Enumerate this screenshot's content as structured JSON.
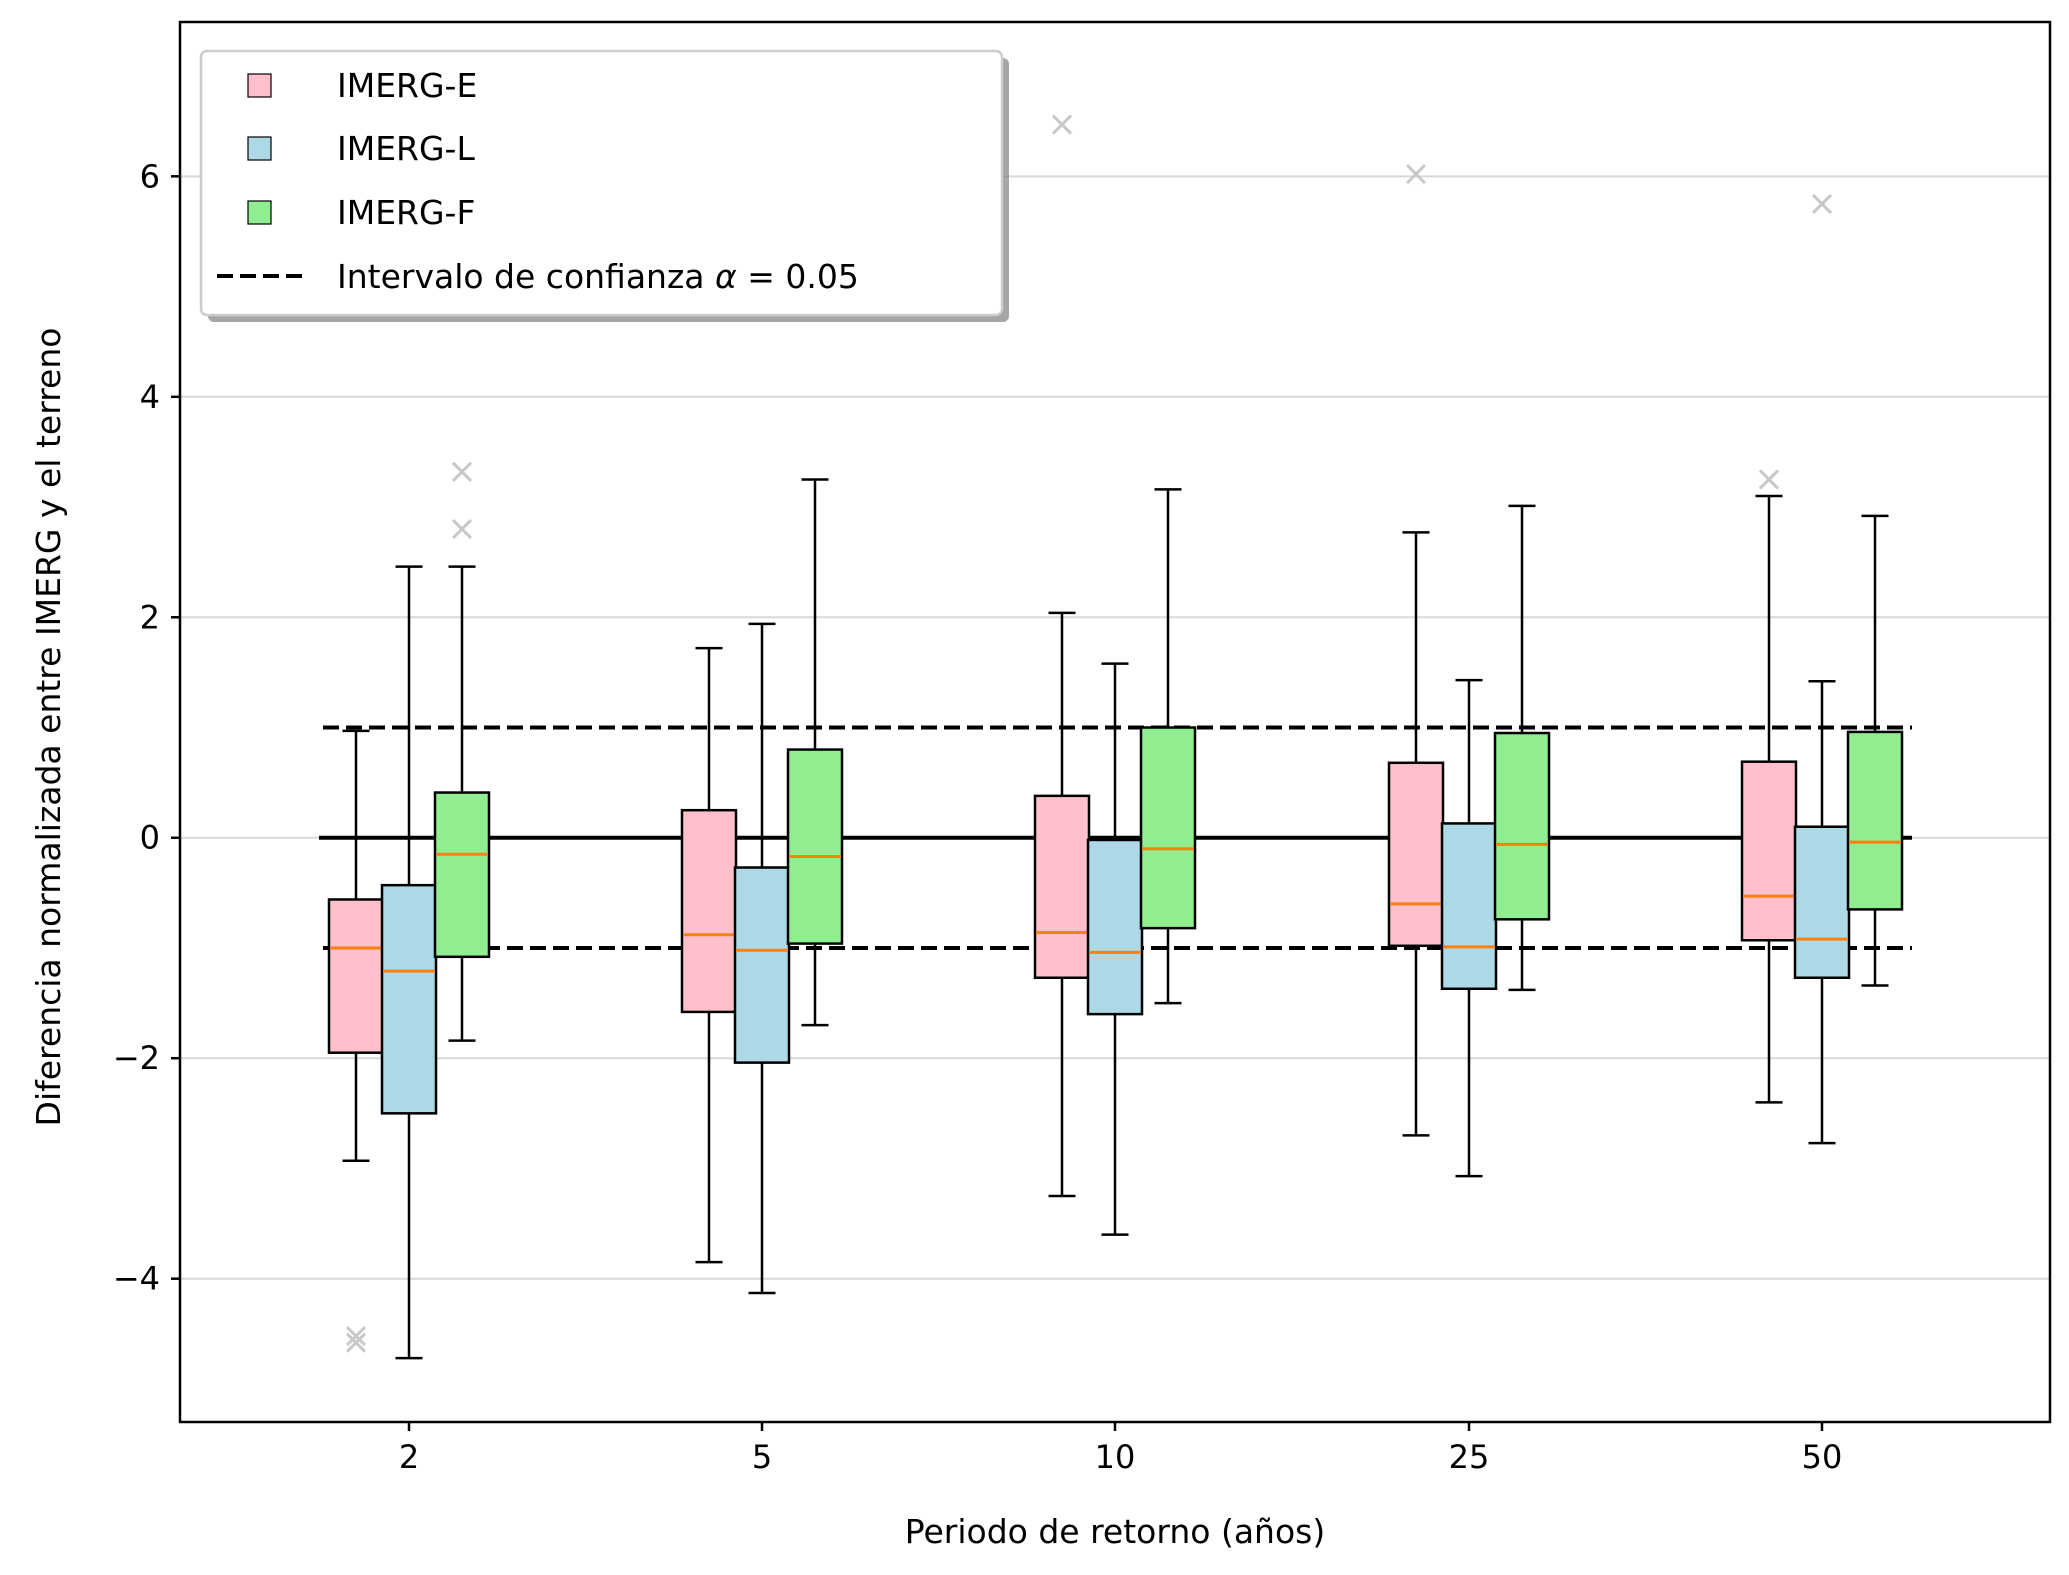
{
  "chart_data": {
    "type": "boxplot",
    "title": "",
    "xlabel": "Periodo de retorno (años)",
    "ylabel": "Diferencia normalizada entre IMERG y el terreno",
    "ylim": [
      -5.3,
      7.4
    ],
    "yticks": [
      -4,
      -2,
      0,
      2,
      4,
      6
    ],
    "ytick_labels": [
      "−4",
      "−2",
      "0",
      "2",
      "4",
      "6"
    ],
    "grid": "horizontal",
    "categories": [
      "2",
      "5",
      "10",
      "25",
      "50"
    ],
    "confidence_interval": {
      "alpha": 0.05,
      "lower": -1,
      "upper": 1
    },
    "reference_line": 0,
    "legend": {
      "placement": "upper-left",
      "entries": [
        {
          "name": "IMERG-E",
          "color": "#ffc0cb"
        },
        {
          "name": "IMERG-L",
          "color": "#add8e6"
        },
        {
          "name": "IMERG-F",
          "color": "#90ee90"
        },
        {
          "name": "Intervalo de confianza",
          "suffix_symbol": "α",
          "suffix_rest": " = 0.05",
          "style": "dashed"
        }
      ]
    },
    "series": [
      {
        "name": "IMERG-E",
        "color": "#ffc0cb",
        "boxes": [
          {
            "whislo": -2.93,
            "q1": -1.95,
            "med": -1.0,
            "q3": -0.56,
            "whishi": 0.97,
            "fliers": [
              -4.52,
              -4.58
            ]
          },
          {
            "whislo": -3.85,
            "q1": -1.58,
            "med": -0.88,
            "q3": 0.25,
            "whishi": 1.72,
            "fliers": []
          },
          {
            "whislo": -3.25,
            "q1": -1.27,
            "med": -0.86,
            "q3": 0.38,
            "whishi": 2.04,
            "fliers": [
              6.47
            ]
          },
          {
            "whislo": -2.7,
            "q1": -0.98,
            "med": -0.6,
            "q3": 0.68,
            "whishi": 2.77,
            "fliers": [
              6.02
            ]
          },
          {
            "whislo": -2.4,
            "q1": -0.93,
            "med": -0.53,
            "q3": 0.69,
            "whishi": 3.1,
            "fliers": [
              3.25
            ]
          }
        ]
      },
      {
        "name": "IMERG-L",
        "color": "#add8e6",
        "boxes": [
          {
            "whislo": -4.72,
            "q1": -2.5,
            "med": -1.21,
            "q3": -0.43,
            "whishi": 2.46,
            "fliers": []
          },
          {
            "whislo": -4.13,
            "q1": -2.04,
            "med": -1.02,
            "q3": -0.27,
            "whishi": 1.94,
            "fliers": []
          },
          {
            "whislo": -3.6,
            "q1": -1.6,
            "med": -1.04,
            "q3": -0.02,
            "whishi": 1.58,
            "fliers": []
          },
          {
            "whislo": -3.07,
            "q1": -1.37,
            "med": -0.99,
            "q3": 0.13,
            "whishi": 1.43,
            "fliers": []
          },
          {
            "whislo": -2.77,
            "q1": -1.27,
            "med": -0.92,
            "q3": 0.1,
            "whishi": 1.42,
            "fliers": [
              5.75
            ]
          }
        ]
      },
      {
        "name": "IMERG-F",
        "color": "#90ee90",
        "boxes": [
          {
            "whislo": -1.84,
            "q1": -1.08,
            "med": -0.15,
            "q3": 0.41,
            "whishi": 2.46,
            "fliers": [
              2.8,
              3.32
            ]
          },
          {
            "whislo": -1.7,
            "q1": -0.96,
            "med": -0.17,
            "q3": 0.8,
            "whishi": 3.25,
            "fliers": []
          },
          {
            "whislo": -1.5,
            "q1": -0.82,
            "med": -0.1,
            "q3": 1.0,
            "whishi": 3.16,
            "fliers": []
          },
          {
            "whislo": -1.38,
            "q1": -0.74,
            "med": -0.06,
            "q3": 0.95,
            "whishi": 3.01,
            "fliers": []
          },
          {
            "whislo": -1.34,
            "q1": -0.65,
            "med": -0.04,
            "q3": 0.96,
            "whishi": 2.92,
            "fliers": []
          }
        ]
      }
    ]
  },
  "style": {
    "median_color": "#ff7f0e",
    "flier_color": "#c8c8c8",
    "grid_color": "#d9d9d9",
    "line_color": "#000000"
  }
}
